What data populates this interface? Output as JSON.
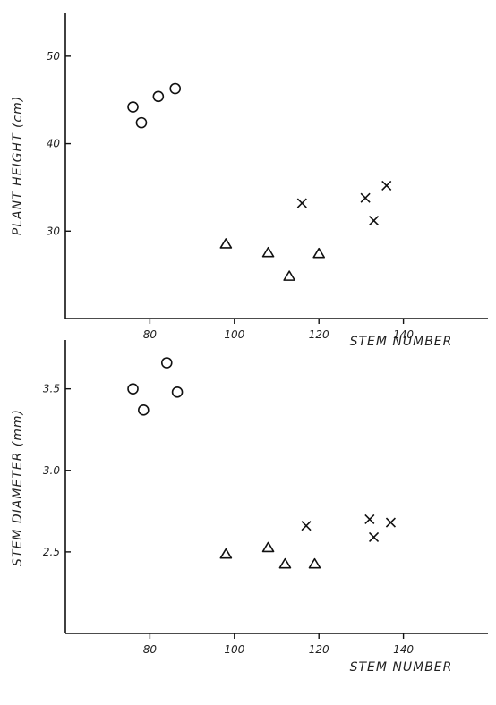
{
  "chart_data": [
    {
      "type": "scatter",
      "title": "",
      "xlabel": "STEM NUMBER",
      "ylabel": "PLANT HEIGHT (cm)",
      "xlim": [
        60,
        160
      ],
      "ylim": [
        20,
        55
      ],
      "xticks": [
        80,
        100,
        120,
        140
      ],
      "xtick_labels": [
        "80",
        "100",
        "120",
        "140"
      ],
      "yticks": [
        30,
        40,
        50
      ],
      "ytick_labels": [
        "30",
        "40",
        "50"
      ],
      "grid": false,
      "series": [
        {
          "marker": "circle",
          "x": [
            76,
            78,
            82,
            86
          ],
          "y": [
            44.2,
            42.4,
            45.4,
            46.3
          ]
        },
        {
          "marker": "triangle",
          "x": [
            98,
            108,
            113,
            120
          ],
          "y": [
            28.6,
            27.6,
            24.9,
            27.5
          ]
        },
        {
          "marker": "cross",
          "x": [
            116,
            131,
            133,
            136
          ],
          "y": [
            33.2,
            33.8,
            31.2,
            35.2
          ]
        }
      ]
    },
    {
      "type": "scatter",
      "title": "",
      "xlabel": "STEM NUMBER",
      "ylabel": "STEM DIAMETER (mm)",
      "xlim": [
        60,
        160
      ],
      "ylim": [
        2.0,
        3.8
      ],
      "xticks": [
        80,
        100,
        120,
        140
      ],
      "xtick_labels": [
        "80",
        "100",
        "120",
        "140"
      ],
      "yticks": [
        2.5,
        3.0,
        3.5
      ],
      "ytick_labels": [
        "2.5",
        "3.0",
        "3.5"
      ],
      "grid": false,
      "series": [
        {
          "marker": "circle",
          "x": [
            76,
            78.5,
            84,
            86.5
          ],
          "y": [
            3.5,
            3.37,
            3.66,
            3.48
          ]
        },
        {
          "marker": "triangle",
          "x": [
            98,
            108,
            112,
            119
          ],
          "y": [
            2.49,
            2.53,
            2.43,
            2.43
          ]
        },
        {
          "marker": "cross",
          "x": [
            117,
            132,
            133,
            137
          ],
          "y": [
            2.66,
            2.7,
            2.59,
            2.68
          ]
        }
      ]
    }
  ]
}
